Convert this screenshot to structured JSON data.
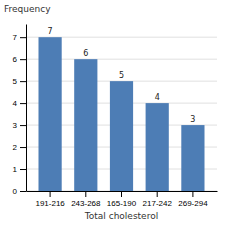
{
  "chart_data": {
    "type": "bar",
    "categories": [
      "191-216",
      "243-268",
      "165-190",
      "217-242",
      "269-294"
    ],
    "values": [
      7,
      6,
      5,
      4,
      3
    ],
    "color": "#4d7db5",
    "xlabel": "Total cholesterol",
    "ylabel": "Frequency",
    "ylim": [
      0,
      7.6
    ],
    "yticks": [
      0,
      1,
      2,
      3,
      4,
      5,
      6,
      7
    ],
    "grid": true,
    "data_labels": true
  }
}
